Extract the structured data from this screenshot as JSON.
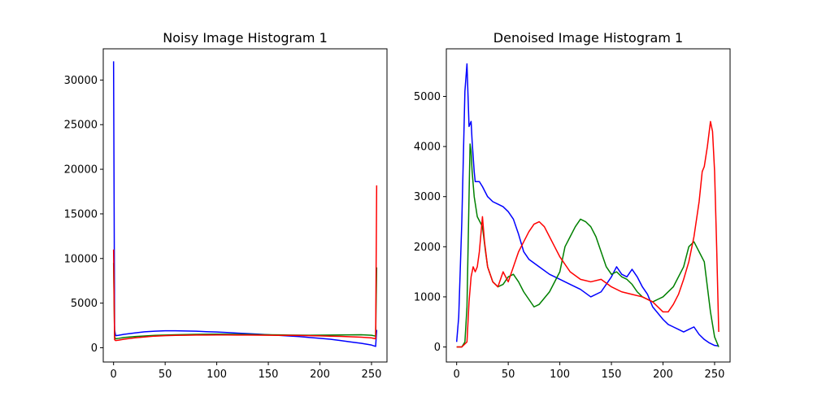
{
  "chart_data": [
    {
      "type": "line",
      "title": "Noisy Image Histogram 1",
      "xlabel": "",
      "ylabel": "",
      "xlim": [
        -10,
        265
      ],
      "ylim": [
        -1600,
        33500
      ],
      "xticks": [
        0,
        50,
        100,
        150,
        200,
        250
      ],
      "yticks": [
        0,
        5000,
        10000,
        15000,
        20000,
        25000,
        30000
      ],
      "grid": false,
      "series": [
        {
          "color": "#0000ff",
          "x": [
            0,
            1,
            2,
            5,
            10,
            20,
            30,
            40,
            50,
            60,
            70,
            80,
            90,
            100,
            110,
            120,
            130,
            140,
            150,
            160,
            170,
            180,
            190,
            200,
            210,
            220,
            230,
            240,
            250,
            254,
            255
          ],
          "y": [
            32100,
            2000,
            1350,
            1400,
            1500,
            1650,
            1780,
            1850,
            1900,
            1900,
            1880,
            1850,
            1800,
            1760,
            1700,
            1640,
            1580,
            1520,
            1450,
            1390,
            1320,
            1250,
            1150,
            1050,
            950,
            800,
            650,
            500,
            300,
            150,
            2000
          ]
        },
        {
          "color": "#008000",
          "x": [
            0,
            1,
            2,
            5,
            10,
            20,
            30,
            40,
            50,
            60,
            70,
            80,
            90,
            100,
            110,
            120,
            130,
            140,
            150,
            160,
            170,
            180,
            190,
            200,
            210,
            220,
            230,
            240,
            250,
            254,
            255
          ],
          "y": [
            9500,
            1200,
            1000,
            1050,
            1150,
            1250,
            1320,
            1380,
            1420,
            1450,
            1480,
            1500,
            1510,
            1520,
            1510,
            1500,
            1490,
            1470,
            1450,
            1440,
            1420,
            1410,
            1400,
            1410,
            1420,
            1430,
            1440,
            1450,
            1400,
            1300,
            9000
          ]
        },
        {
          "color": "#ff0000",
          "x": [
            0,
            1,
            2,
            5,
            10,
            20,
            30,
            40,
            50,
            60,
            70,
            80,
            90,
            100,
            110,
            120,
            130,
            140,
            150,
            160,
            170,
            180,
            190,
            200,
            210,
            220,
            230,
            240,
            250,
            254,
            255
          ],
          "y": [
            11000,
            900,
            800,
            850,
            950,
            1100,
            1200,
            1300,
            1350,
            1380,
            1400,
            1420,
            1420,
            1430,
            1430,
            1420,
            1420,
            1410,
            1400,
            1390,
            1380,
            1370,
            1350,
            1330,
            1300,
            1270,
            1230,
            1180,
            1100,
            1000,
            18200
          ]
        }
      ]
    },
    {
      "type": "line",
      "title": "Denoised Image Histogram 1",
      "xlabel": "",
      "ylabel": "",
      "xlim": [
        -10,
        265
      ],
      "ylim": [
        -300,
        5950
      ],
      "xticks": [
        0,
        50,
        100,
        150,
        200,
        250
      ],
      "yticks": [
        0,
        1000,
        2000,
        3000,
        4000,
        5000
      ],
      "grid": false,
      "series": [
        {
          "color": "#0000ff",
          "x": [
            0,
            2,
            5,
            8,
            10,
            12,
            14,
            15,
            17,
            18,
            20,
            22,
            25,
            30,
            35,
            40,
            45,
            50,
            55,
            60,
            65,
            70,
            80,
            90,
            100,
            110,
            120,
            130,
            140,
            150,
            155,
            160,
            165,
            170,
            175,
            180,
            185,
            190,
            200,
            205,
            210,
            215,
            220,
            225,
            230,
            235,
            240,
            245,
            250,
            254
          ],
          "y": [
            100,
            600,
            2500,
            5100,
            5650,
            4400,
            4500,
            4100,
            3500,
            3300,
            3300,
            3300,
            3200,
            3000,
            2900,
            2850,
            2800,
            2700,
            2550,
            2250,
            1900,
            1750,
            1600,
            1450,
            1350,
            1250,
            1150,
            1000,
            1100,
            1400,
            1600,
            1450,
            1400,
            1550,
            1400,
            1200,
            1050,
            800,
            550,
            450,
            400,
            350,
            300,
            350,
            400,
            250,
            150,
            80,
            30,
            20
          ]
        },
        {
          "color": "#008000",
          "x": [
            0,
            5,
            8,
            10,
            12,
            13,
            14,
            15,
            17,
            20,
            25,
            28,
            30,
            35,
            40,
            45,
            50,
            55,
            60,
            65,
            70,
            75,
            80,
            90,
            100,
            105,
            110,
            115,
            120,
            125,
            130,
            135,
            140,
            145,
            150,
            155,
            160,
            165,
            170,
            175,
            180,
            185,
            190,
            195,
            200,
            210,
            220,
            225,
            230,
            235,
            240,
            243,
            246,
            250,
            254
          ],
          "y": [
            0,
            0,
            100,
            800,
            3000,
            4050,
            3900,
            3500,
            3000,
            2600,
            2400,
            1900,
            1600,
            1300,
            1200,
            1250,
            1400,
            1450,
            1300,
            1100,
            950,
            800,
            850,
            1100,
            1500,
            2000,
            2200,
            2400,
            2550,
            2500,
            2400,
            2200,
            1900,
            1600,
            1450,
            1500,
            1400,
            1350,
            1250,
            1100,
            1000,
            950,
            900,
            950,
            1000,
            1200,
            1600,
            2000,
            2100,
            1900,
            1700,
            1200,
            700,
            200,
            0
          ]
        },
        {
          "color": "#ff0000",
          "x": [
            0,
            5,
            10,
            12,
            14,
            16,
            18,
            20,
            22,
            25,
            27,
            30,
            35,
            40,
            45,
            50,
            55,
            60,
            65,
            70,
            75,
            80,
            85,
            90,
            95,
            100,
            110,
            120,
            130,
            140,
            150,
            160,
            170,
            180,
            190,
            200,
            205,
            210,
            215,
            220,
            225,
            230,
            235,
            238,
            240,
            243,
            246,
            248,
            250,
            252,
            254
          ],
          "y": [
            0,
            0,
            100,
            900,
            1400,
            1600,
            1500,
            1600,
            1900,
            2600,
            2100,
            1600,
            1300,
            1200,
            1500,
            1300,
            1600,
            1900,
            2100,
            2300,
            2450,
            2500,
            2400,
            2200,
            2000,
            1800,
            1500,
            1350,
            1300,
            1350,
            1200,
            1100,
            1050,
            1000,
            900,
            700,
            700,
            850,
            1050,
            1350,
            1700,
            2200,
            2900,
            3500,
            3600,
            4000,
            4500,
            4300,
            3500,
            2000,
            300
          ]
        }
      ]
    }
  ]
}
